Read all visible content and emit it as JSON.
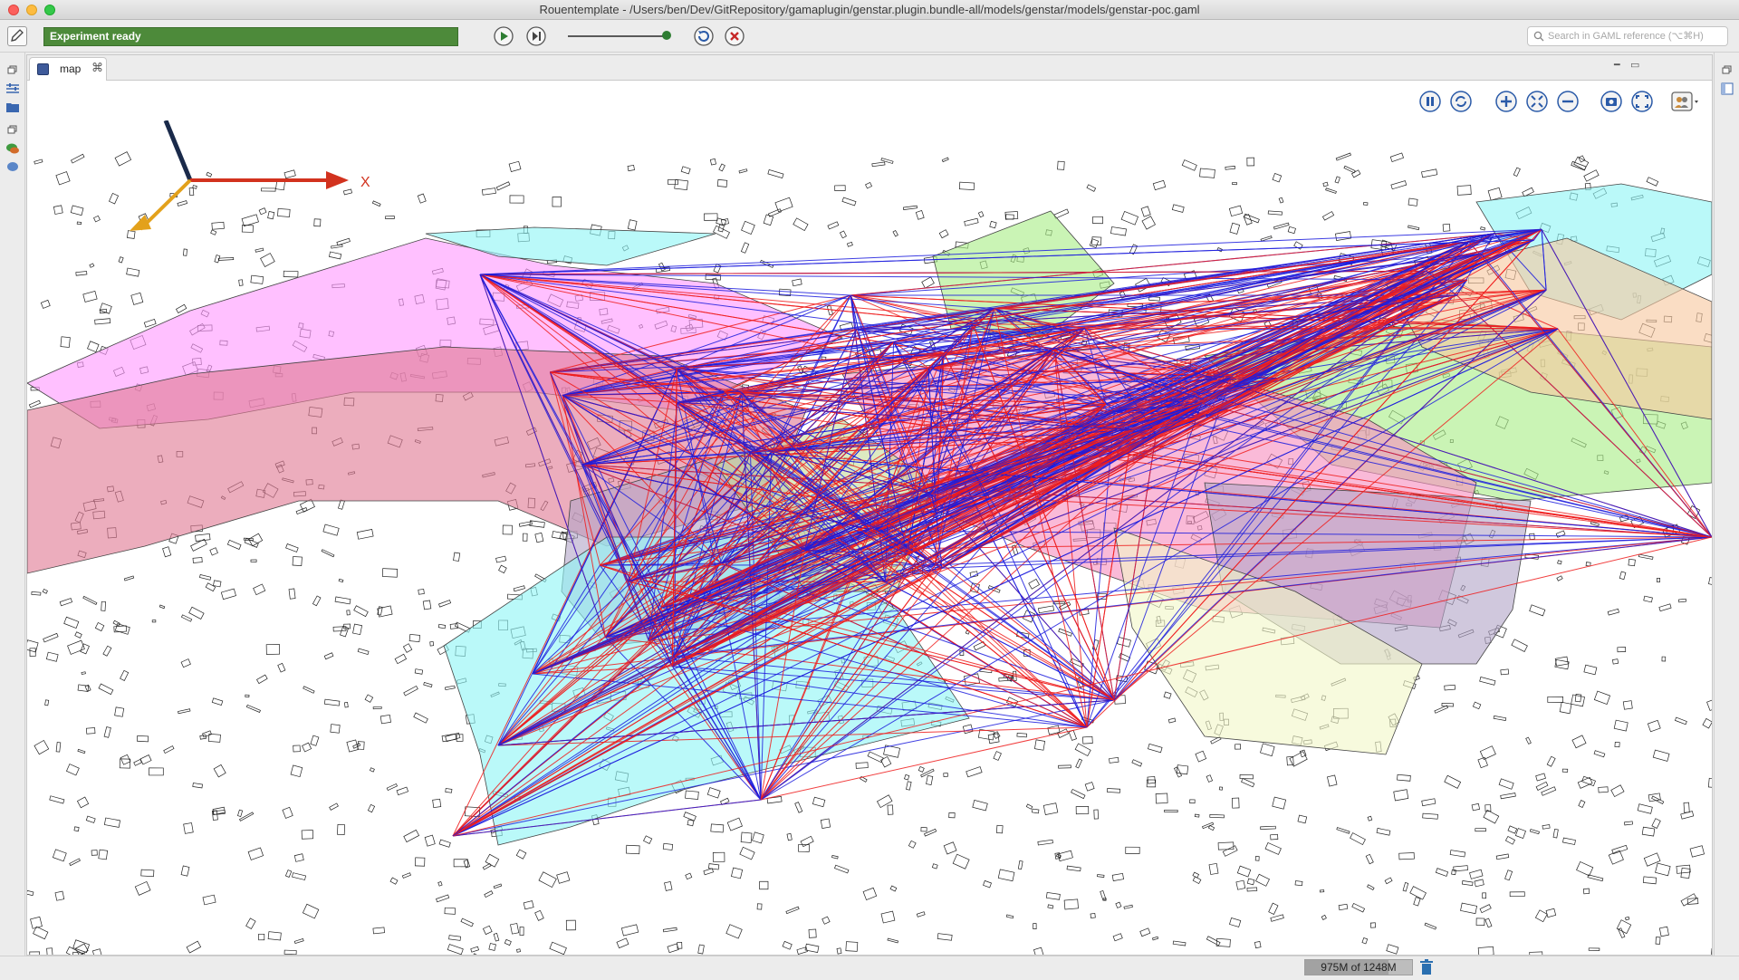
{
  "window": {
    "title": "Rouentemplate - /Users/ben/Dev/GitRepository/gamaplugin/genstar.plugin.bundle-all/models/genstar/models/genstar-poc.gaml"
  },
  "toolbar": {
    "status": "Experiment ready",
    "status_color": "#4d8a3a",
    "play_icon": "play-icon",
    "step_icon": "step-icon",
    "reload_icon": "reload-icon",
    "close_icon": "close-experiment-icon",
    "search_placeholder": "Search in GAML reference (⌥⌘H)"
  },
  "view": {
    "tab_label": "map",
    "tab_close": "⌘",
    "map_tools": [
      "pause-icon",
      "sync-icon",
      "zoom-in-icon",
      "zoom-fit-icon",
      "zoom-out-icon",
      "snapshot-icon",
      "fullscreen-icon",
      "layers-icon"
    ]
  },
  "map": {
    "axis_label": "X",
    "link_colors": {
      "red": "#ee1c1c",
      "blue": "#1c1cdd"
    },
    "zone_colors": [
      "#ff99ff",
      "#e07a95",
      "#8ff5f5",
      "#aaee88",
      "#f78fc0",
      "#b3a6c8",
      "#f2f7c8",
      "#c7dd9b",
      "#f7c8a0"
    ]
  },
  "statusbar": {
    "memory": "975M of 1248M",
    "memory_used_fraction": 0.78
  }
}
